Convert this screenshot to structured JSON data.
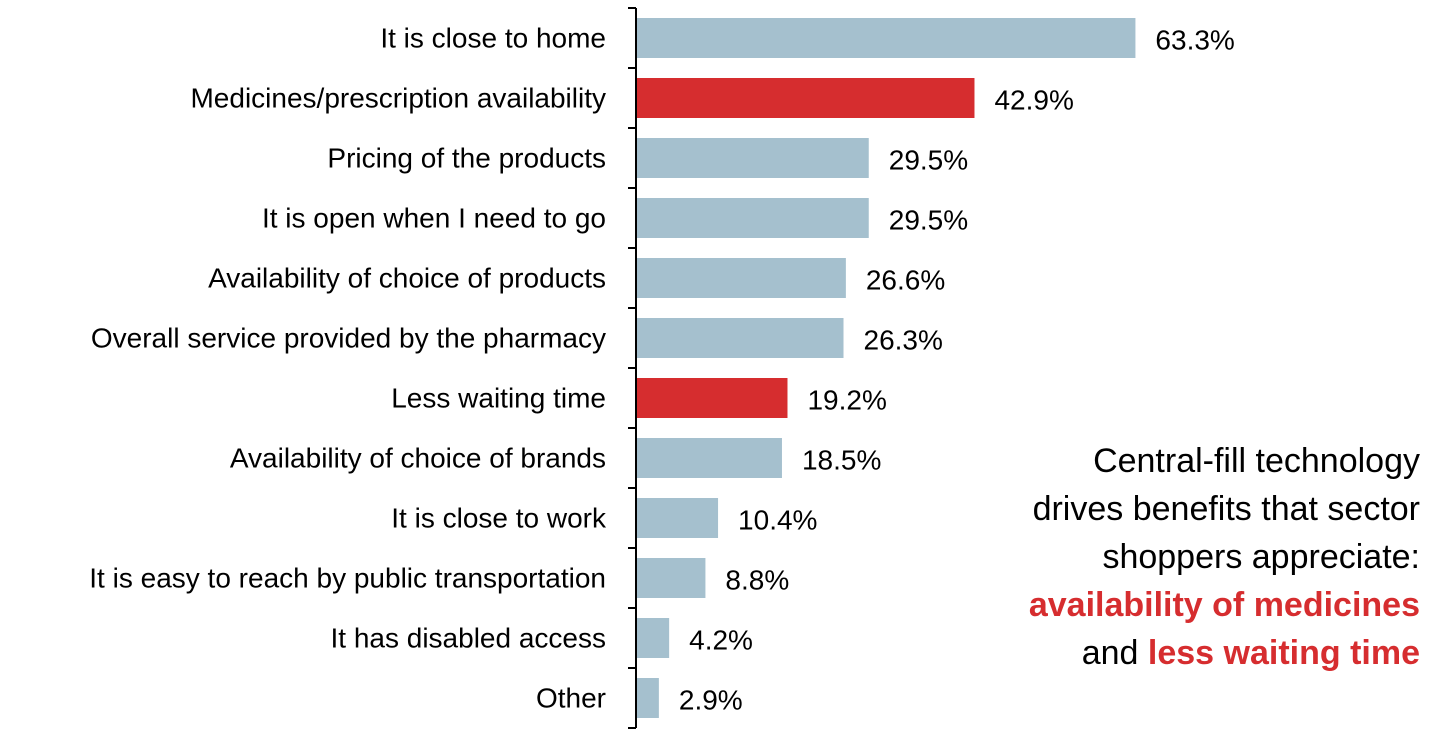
{
  "chart_data": {
    "type": "bar",
    "orientation": "horizontal",
    "categories": [
      "It is close to home",
      "Medicines/prescription availability",
      "Pricing of the products",
      "It is open when I need to go",
      "Availability of choice of products",
      "Overall service provided by the pharmacy",
      "Less waiting time",
      "Availability of choice of brands",
      "It is close to work",
      "It is easy to reach by public transportation",
      "It has disabled access",
      "Other"
    ],
    "values": [
      63.3,
      42.9,
      29.5,
      29.5,
      26.6,
      26.3,
      19.2,
      18.5,
      10.4,
      8.8,
      4.2,
      2.9
    ],
    "value_labels": [
      "63.3%",
      "42.9%",
      "29.5%",
      "29.5%",
      "26.6%",
      "26.3%",
      "19.2%",
      "18.5%",
      "10.4%",
      "8.8%",
      "4.2%",
      "2.9%"
    ],
    "highlighted": [
      false,
      true,
      false,
      false,
      false,
      false,
      true,
      false,
      false,
      false,
      false,
      false
    ],
    "xlim": [
      0,
      100
    ],
    "colors": {
      "default": "#a5c0ce",
      "highlight": "#d62d2f"
    },
    "grid": false,
    "legend": "none"
  },
  "annotation": {
    "line1": "Central-fill technology",
    "line2": "drives benefits that sector",
    "line3": "shoppers appreciate:",
    "highlight1": "availability of medicines",
    "connector": "and",
    "highlight2": "less waiting time",
    "highlight_color": "#d62d2f"
  }
}
